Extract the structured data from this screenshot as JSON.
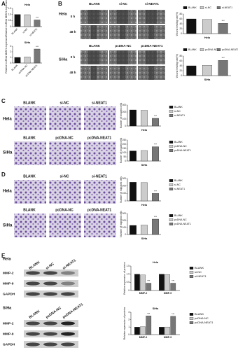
{
  "figure": {
    "panels": [
      "A",
      "B",
      "C",
      "D",
      "E"
    ],
    "B": {
      "hela": {
        "label": "Hela",
        "columns": [
          "BLANK",
          "si-NC",
          "si-NEAT1"
        ],
        "rows": [
          "0 h",
          "48 h"
        ]
      },
      "siha": {
        "label": "SiHa",
        "columns": [
          "BLANK",
          "pcDNA-NC",
          "pcDNA-NEAT1"
        ],
        "rows": [
          "0 h",
          "48 h"
        ]
      }
    },
    "C": {
      "hela": {
        "label": "Hela",
        "columns": [
          "BLANK",
          "si-NC",
          "si-NEAT1"
        ]
      },
      "siha": {
        "label": "SiHa",
        "columns": [
          "BLANK",
          "pcDNA-NC",
          "pcDNA-NEAT1"
        ]
      }
    },
    "D": {
      "hela": {
        "label": "Hela",
        "columns": [
          "BLANK",
          "si-NC",
          "si-NEAT1"
        ]
      },
      "siha": {
        "label": "SiHa",
        "columns": [
          "BLANK",
          "pcDNA-NC",
          "pcDNA-NEAT1"
        ]
      }
    },
    "E": {
      "hela": {
        "label": "Hela",
        "columns": [
          "BLANK",
          "si-NC",
          "si-NEAT1"
        ],
        "rows": [
          "MMP-2",
          "MMP-9",
          "GAPDH"
        ]
      },
      "siha": {
        "label": "SiHa",
        "columns": [
          "BLANK",
          "pcDNA-NC",
          "pcDNA-NEAT1"
        ],
        "rows": [
          "MMP-2",
          "MMP-9",
          "GAPDH"
        ]
      }
    }
  },
  "chart_data": [
    {
      "type": "bar",
      "title": "Hela",
      "ylabel": "Relative lncRNA NEAT1 expression",
      "categories": [
        "BLANK",
        "si-NC",
        "si-NEAT1"
      ],
      "values": [
        1.0,
        0.98,
        0.55
      ],
      "colors": [
        "#111111",
        "#cccccc",
        "#777777"
      ],
      "ylim": [
        0,
        1.5
      ],
      "yticks": [
        0,
        0.5,
        {
          "value": 1,
          "label": "1.0"
        },
        1.5
      ],
      "annotations": [
        {
          "text": "***",
          "x": "si-NEAT1"
        }
      ]
    },
    {
      "type": "bar",
      "title": "SiHa",
      "ylabel": "Relative lncRNA NEAT1 expression",
      "categories": [
        "BLANK",
        "pcDNA-NC",
        "pcDNA-NEAT1"
      ],
      "values": [
        1.0,
        1.1,
        2.5
      ],
      "colors": [
        "#111111",
        "#cccccc",
        "#777777"
      ],
      "ylim": [
        0,
        3
      ],
      "yticks": [
        0,
        1,
        2,
        3
      ],
      "annotations": [
        {
          "text": "***",
          "x": "pcDNA-NEAT1"
        }
      ]
    },
    {
      "type": "bar",
      "title": "Hela",
      "ylabel": "Wound healing rate(%)",
      "categories": [
        "BLANK",
        "si-NC",
        "si-NEAT1"
      ],
      "values": [
        60,
        58,
        42
      ],
      "colors": [
        "#111111",
        "#cccccc",
        "#777777"
      ],
      "ylim": [
        0,
        80
      ],
      "yticks": [
        0,
        20,
        40,
        60,
        80
      ],
      "legend": "top",
      "annotations": [
        {
          "text": "***",
          "x": "si-NEAT1"
        }
      ]
    },
    {
      "type": "bar",
      "title": "SiHa",
      "ylabel": "Wound healing rate(%)",
      "categories": [
        "BLANK",
        "pcDNA-NC",
        "pcDNA-NEAT1"
      ],
      "values": [
        40,
        42,
        62
      ],
      "colors": [
        "#111111",
        "#cccccc",
        "#777777"
      ],
      "ylim": [
        0,
        80
      ],
      "yticks": [
        0,
        20,
        40,
        60,
        80
      ],
      "legend": "top",
      "annotations": [
        {
          "text": "***",
          "x": "pcDNA-NEAT1"
        }
      ]
    },
    {
      "type": "bar",
      "title": "Hela",
      "ylabel": "Number of invaded cells",
      "categories": [
        "BLANK",
        "si-NC",
        "si-NEAT1"
      ],
      "values": [
        230,
        225,
        110
      ],
      "colors": [
        "#111111",
        "#cccccc",
        "#777777"
      ],
      "ylim": [
        0,
        300
      ],
      "yticks": [
        0,
        100,
        200,
        300
      ],
      "legend": "right",
      "annotations": [
        {
          "text": "***",
          "x": "si-NEAT1"
        }
      ]
    },
    {
      "type": "bar",
      "title": "SiHa",
      "ylabel": "Number of invaded cells",
      "categories": [
        "BLANK",
        "pcDNA-NC",
        "pcDNA-NEAT1"
      ],
      "values": [
        120,
        125,
        170
      ],
      "colors": [
        "#111111",
        "#cccccc",
        "#777777"
      ],
      "ylim": [
        0,
        250
      ],
      "yticks": [
        0,
        50,
        100,
        150,
        200,
        250
      ],
      "legend": "right",
      "annotations": [
        {
          "text": "***",
          "x": "pcDNA-NEAT1"
        }
      ]
    },
    {
      "type": "bar",
      "title": "Hela",
      "ylabel": "Number of migrated cells",
      "categories": [
        "BLANK",
        "si-NC",
        "si-NEAT1"
      ],
      "values": [
        250,
        245,
        100
      ],
      "colors": [
        "#111111",
        "#cccccc",
        "#777777"
      ],
      "ylim": [
        0,
        300
      ],
      "yticks": [
        0,
        100,
        200,
        300
      ],
      "legend": "right",
      "annotations": [
        {
          "text": "***",
          "x": "si-NEAT1"
        }
      ]
    },
    {
      "type": "bar",
      "title": "SiHa",
      "ylabel": "Number of migrated cells",
      "categories": [
        "BLANK",
        "pcDNA-NC",
        "pcDNA-NEAT1"
      ],
      "values": [
        130,
        135,
        220
      ],
      "colors": [
        "#111111",
        "#cccccc",
        "#777777"
      ],
      "ylim": [
        0,
        300
      ],
      "yticks": [
        0,
        100,
        200,
        300
      ],
      "legend": "right",
      "annotations": [
        {
          "text": "***",
          "x": "pcDNA-NEAT1"
        }
      ]
    },
    {
      "type": "grouped_bar",
      "title": "Hela",
      "ylabel": "Relative expression of proteins",
      "categories": [
        "MMP-2",
        "MMP-9"
      ],
      "series": [
        {
          "name": "BLANK",
          "color": "#111111",
          "values": [
            1.0,
            1.0
          ]
        },
        {
          "name": "si-NC",
          "color": "#cccccc",
          "values": [
            0.95,
            0.98
          ]
        },
        {
          "name": "si-NEAT1",
          "color": "#777777",
          "values": [
            0.45,
            0.45
          ]
        }
      ],
      "ylim": [
        0,
        1.5
      ],
      "yticks": [
        0,
        0.5,
        {
          "value": 1,
          "label": "1.0"
        },
        1.5
      ],
      "legend": "right",
      "annotations": [
        {
          "text": "***",
          "x": "MMP-2",
          "series": "si-NEAT1"
        },
        {
          "text": "***",
          "x": "MMP-9",
          "series": "si-NEAT1"
        }
      ]
    },
    {
      "type": "grouped_bar",
      "title": "SiHa",
      "ylabel": "Relative expression of proteins",
      "categories": [
        "MMP-2",
        "MMP-9"
      ],
      "series": [
        {
          "name": "BLANK",
          "color": "#111111",
          "values": [
            1.0,
            1.0
          ]
        },
        {
          "name": "pcDNA-NC",
          "color": "#cccccc",
          "values": [
            1.05,
            1.02
          ]
        },
        {
          "name": "pcDNA-NEAT1",
          "color": "#777777",
          "values": [
            2.5,
            2.45
          ]
        }
      ],
      "ylim": [
        0,
        3
      ],
      "yticks": [
        0,
        1,
        2,
        3
      ],
      "legend": "right",
      "annotations": [
        {
          "text": "***",
          "x": "MMP-2",
          "series": "pcDNA-NEAT1"
        },
        {
          "text": "***",
          "x": "MMP-9",
          "series": "pcDNA-NEAT1"
        }
      ]
    }
  ]
}
